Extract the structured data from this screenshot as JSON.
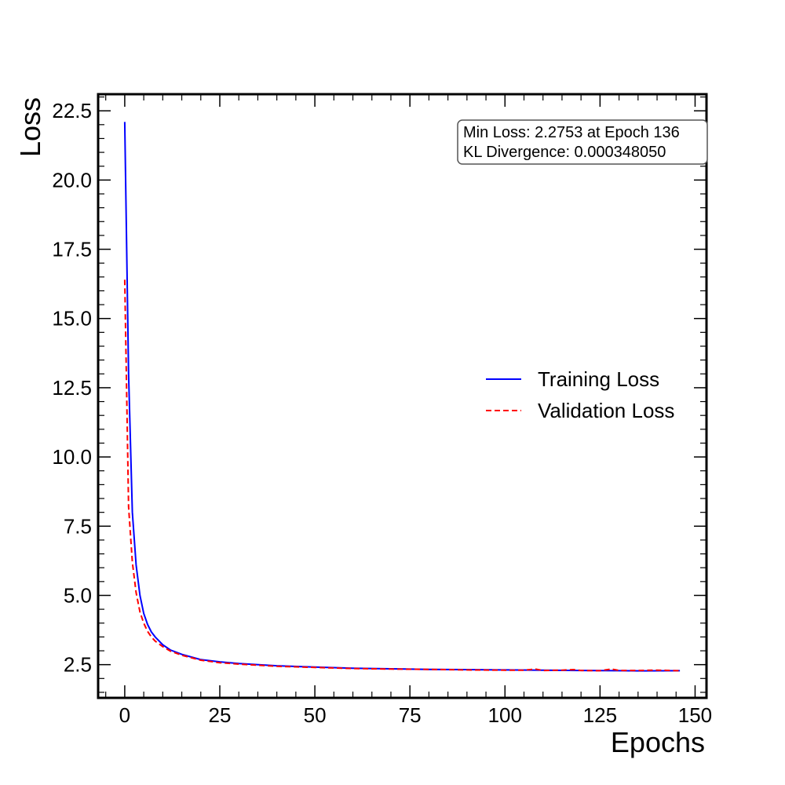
{
  "chart_data": {
    "type": "line",
    "title": "",
    "xlabel": "Epochs",
    "ylabel": "Loss",
    "xlim": [
      -7,
      153
    ],
    "ylim": [
      1.3,
      23.1
    ],
    "xticks": [
      0,
      25,
      50,
      75,
      100,
      125,
      150
    ],
    "yticks": [
      2.5,
      5.0,
      7.5,
      10.0,
      12.5,
      15.0,
      17.5,
      20.0,
      22.5
    ],
    "x_minor_step": 5,
    "y_minor_step": 0.5,
    "grid": false,
    "legend_position": "center-right",
    "annotation": {
      "line1": "Min Loss: 2.2753 at Epoch 136",
      "line2": "KL Divergence: 0.000348050",
      "position": "top-right"
    },
    "series": [
      {
        "name": "Training Loss",
        "color": "#0000ff",
        "style": "solid",
        "x": [
          0,
          1,
          2,
          3,
          4,
          5,
          6,
          7,
          8,
          10,
          12,
          15,
          20,
          25,
          30,
          40,
          50,
          60,
          70,
          80,
          90,
          100,
          110,
          120,
          130,
          136,
          146
        ],
        "y": [
          22.1,
          13.0,
          8.0,
          6.1,
          5.0,
          4.35,
          3.95,
          3.68,
          3.5,
          3.22,
          3.03,
          2.87,
          2.68,
          2.6,
          2.54,
          2.46,
          2.41,
          2.37,
          2.35,
          2.33,
          2.32,
          2.31,
          2.3,
          2.29,
          2.28,
          2.2753,
          2.28
        ]
      },
      {
        "name": "Validation Loss",
        "color": "#ff0000",
        "style": "dashed",
        "x": [
          0,
          1,
          2,
          3,
          4,
          5,
          6,
          7,
          8,
          10,
          12,
          15,
          20,
          25,
          30,
          40,
          50,
          60,
          70,
          80,
          90,
          100,
          105,
          108,
          110,
          115,
          118,
          120,
          125,
          128,
          130,
          135,
          140,
          146
        ],
        "y": [
          16.4,
          8.2,
          6.2,
          5.1,
          4.4,
          4.0,
          3.7,
          3.5,
          3.35,
          3.15,
          2.99,
          2.84,
          2.66,
          2.57,
          2.52,
          2.44,
          2.4,
          2.36,
          2.34,
          2.33,
          2.31,
          2.3,
          2.3,
          2.34,
          2.29,
          2.3,
          2.32,
          2.29,
          2.28,
          2.34,
          2.29,
          2.29,
          2.3,
          2.28
        ]
      }
    ]
  }
}
